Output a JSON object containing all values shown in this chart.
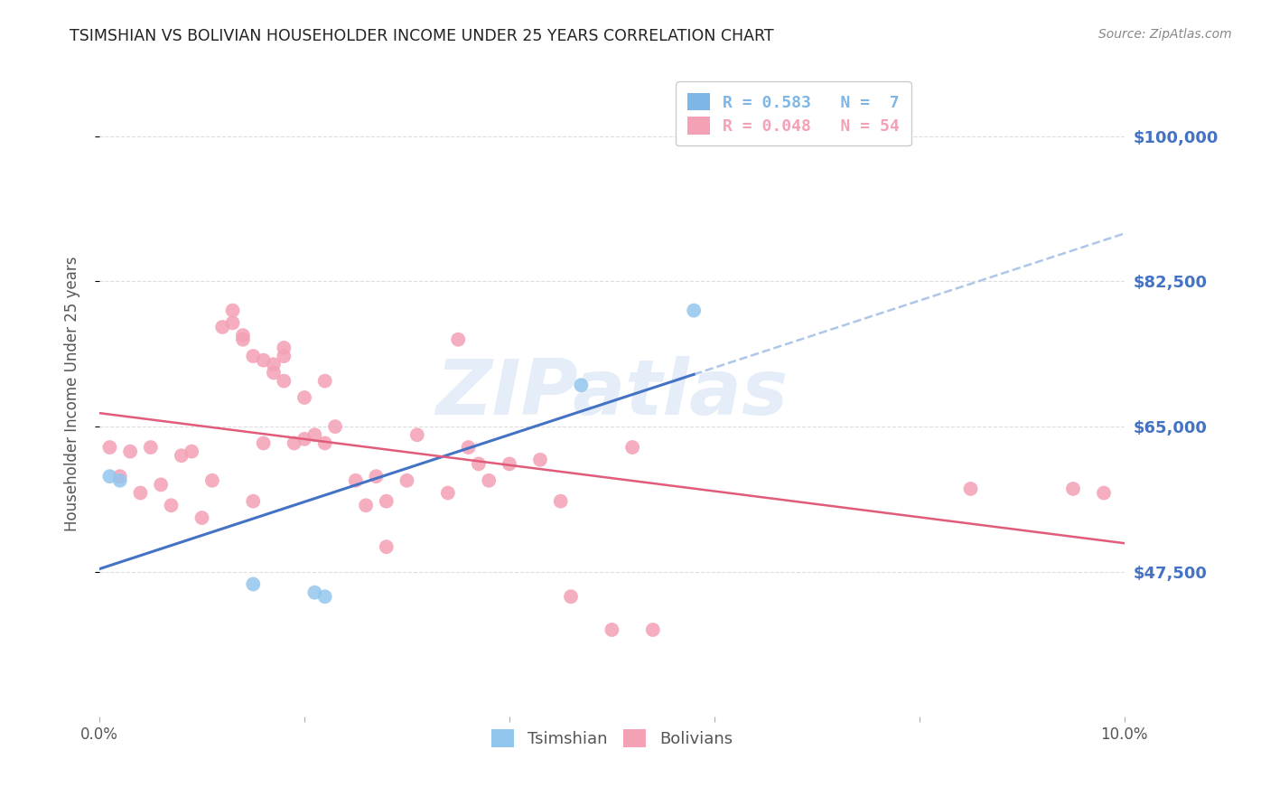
{
  "title": "TSIMSHIAN VS BOLIVIAN HOUSEHOLDER INCOME UNDER 25 YEARS CORRELATION CHART",
  "source": "Source: ZipAtlas.com",
  "ylabel": "Householder Income Under 25 years",
  "xmin": 0.0,
  "xmax": 0.1,
  "ymin": 30000,
  "ymax": 108000,
  "yticks": [
    47500,
    65000,
    82500,
    100000
  ],
  "ytick_labels": [
    "$47,500",
    "$65,000",
    "$82,500",
    "$100,000"
  ],
  "xticks": [
    0.0,
    0.02,
    0.04,
    0.06,
    0.08,
    0.1
  ],
  "xtick_labels": [
    "0.0%",
    "",
    "",
    "",
    "",
    "10.0%"
  ],
  "legend_entries": [
    {
      "label": "R = 0.583   N =  7",
      "color": "#7EB6E8"
    },
    {
      "label": "R = 0.048   N = 54",
      "color": "#F4A0B5"
    }
  ],
  "tsimshian_x": [
    0.001,
    0.002,
    0.015,
    0.021,
    0.022,
    0.047,
    0.058
  ],
  "tsimshian_y": [
    59000,
    58500,
    46000,
    45000,
    44500,
    70000,
    79000
  ],
  "bolivian_x": [
    0.001,
    0.002,
    0.003,
    0.004,
    0.005,
    0.006,
    0.007,
    0.008,
    0.009,
    0.01,
    0.011,
    0.012,
    0.013,
    0.014,
    0.015,
    0.015,
    0.016,
    0.017,
    0.017,
    0.018,
    0.018,
    0.018,
    0.019,
    0.02,
    0.02,
    0.021,
    0.022,
    0.022,
    0.023,
    0.025,
    0.026,
    0.027,
    0.028,
    0.03,
    0.031,
    0.034,
    0.035,
    0.036,
    0.037,
    0.038,
    0.04,
    0.043,
    0.045,
    0.046,
    0.05,
    0.052,
    0.054,
    0.085,
    0.095,
    0.098,
    0.013,
    0.014,
    0.016,
    0.028
  ],
  "bolivian_y": [
    62500,
    59000,
    62000,
    57000,
    62500,
    58000,
    55500,
    61500,
    62000,
    54000,
    58500,
    77000,
    77500,
    75500,
    73500,
    56000,
    63000,
    71500,
    72500,
    70500,
    73500,
    74500,
    63000,
    68500,
    63500,
    64000,
    70500,
    63000,
    65000,
    58500,
    55500,
    59000,
    50500,
    58500,
    64000,
    57000,
    75500,
    62500,
    60500,
    58500,
    60500,
    61000,
    56000,
    44500,
    40500,
    62500,
    40500,
    57500,
    57500,
    57000,
    79000,
    76000,
    73000,
    56000
  ],
  "tsimshian_color": "#93C6ED",
  "bolivian_color": "#F4A0B5",
  "tsimshian_line_color": "#4472C4",
  "bolivian_line_color": "#E05C7A",
  "dashed_line_color": "#AEC6E8",
  "background_color": "#FFFFFF",
  "grid_color": "#DDDDDD",
  "watermark": "ZIPatlas",
  "watermark_color": "#C5D8F0",
  "title_color": "#222222",
  "axis_label_color": "#555555",
  "tick_label_color_right": "#4472C4",
  "tick_label_color_bottom": "#555555",
  "marker_size": 130,
  "tsimshian_line_xmax": 0.058,
  "dashed_line_xstart": 0.058
}
